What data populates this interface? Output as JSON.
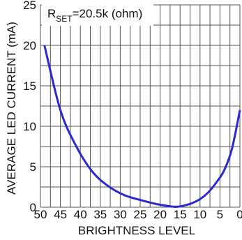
{
  "chart_data": {
    "type": "line",
    "xlabel": "BRIGHTNESS LEVEL",
    "ylabel": "AVERAGE LED CURRENT (mA)",
    "annotation": {
      "main": "R",
      "sub": "SET",
      "rest": "=20.5k (ohm)"
    },
    "x_ticks": [
      "50",
      "45",
      "40",
      "35",
      "30",
      "25",
      "20",
      "15",
      "10",
      "5",
      "0"
    ],
    "y_ticks": [
      "0",
      "5",
      "10",
      "15",
      "20",
      "25"
    ],
    "xlim": [
      50,
      0
    ],
    "ylim": [
      0,
      25
    ],
    "grid": true,
    "series": [
      {
        "x": [
          49,
          45,
          41,
          37,
          33,
          29,
          25,
          21,
          18,
          16,
          14,
          12,
          10,
          8,
          6,
          4,
          2,
          0
        ],
        "y": [
          20,
          12.0,
          7.5,
          4.4,
          2.6,
          1.5,
          0.9,
          0.4,
          0.15,
          0.05,
          0.2,
          0.5,
          1.0,
          1.8,
          3.0,
          4.5,
          7.2,
          12.0
        ],
        "color": "#2a2ad0"
      }
    ]
  }
}
